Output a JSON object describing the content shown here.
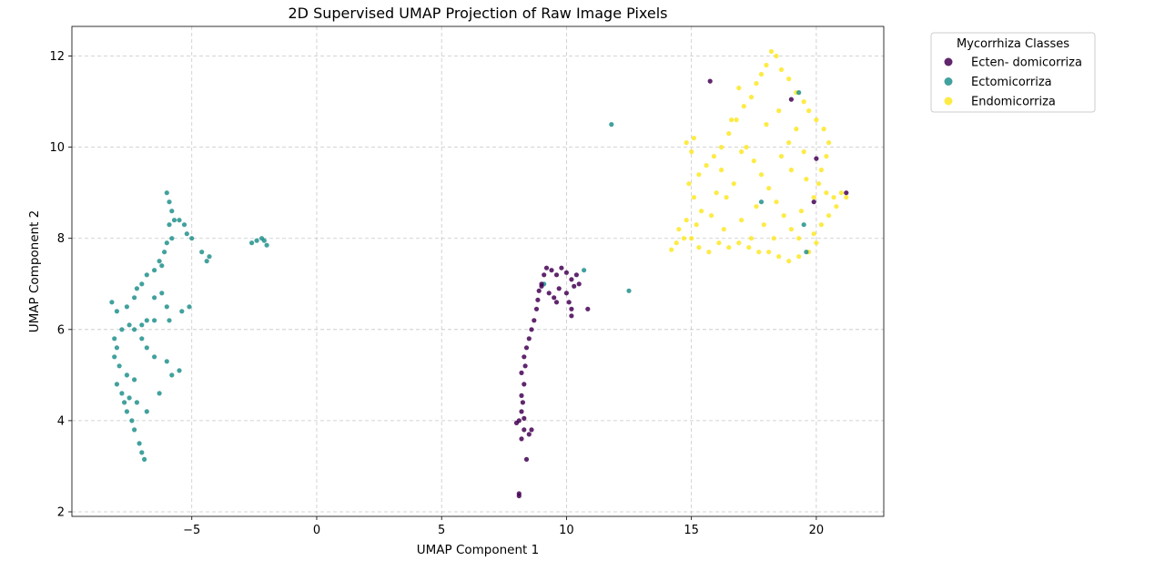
{
  "chart_data": {
    "type": "scatter",
    "title": "2D Supervised UMAP Projection of Raw Image Pixels",
    "xlabel": "UMAP Component 1",
    "ylabel": "UMAP Component 2",
    "xlim": [
      -9.8,
      22.7
    ],
    "ylim": [
      1.9,
      12.65
    ],
    "xticks": [
      -5,
      0,
      5,
      10,
      15,
      20
    ],
    "xtick_labels": [
      "−5",
      "0",
      "5",
      "10",
      "15",
      "20"
    ],
    "yticks": [
      2,
      4,
      6,
      8,
      10,
      12
    ],
    "ytick_labels": [
      "2",
      "4",
      "6",
      "8",
      "10",
      "12"
    ],
    "grid": true,
    "legend": {
      "title": "Mycorrhiza Classes",
      "placement": "outside-top-right",
      "entries": [
        "Ecten- domicorriza",
        "Ectomicorriza",
        "Endomicorriza"
      ]
    },
    "series": [
      {
        "name": "Ecten- domicorriza",
        "color": "#440154",
        "points": [
          [
            8.1,
            2.4
          ],
          [
            8.1,
            2.35
          ],
          [
            8.4,
            3.15
          ],
          [
            8.2,
            3.6
          ],
          [
            8.3,
            3.8
          ],
          [
            8.0,
            3.95
          ],
          [
            8.1,
            4.0
          ],
          [
            8.3,
            4.05
          ],
          [
            8.6,
            3.8
          ],
          [
            8.5,
            3.7
          ],
          [
            8.2,
            4.2
          ],
          [
            8.25,
            4.4
          ],
          [
            8.2,
            4.55
          ],
          [
            8.3,
            4.8
          ],
          [
            8.2,
            5.05
          ],
          [
            8.35,
            5.2
          ],
          [
            8.3,
            5.4
          ],
          [
            8.4,
            5.6
          ],
          [
            8.5,
            5.8
          ],
          [
            8.6,
            6.0
          ],
          [
            8.7,
            6.2
          ],
          [
            8.8,
            6.45
          ],
          [
            8.85,
            6.65
          ],
          [
            8.9,
            6.85
          ],
          [
            9.0,
            7.0
          ],
          [
            9.1,
            7.2
          ],
          [
            9.2,
            7.35
          ],
          [
            9.4,
            7.3
          ],
          [
            9.6,
            7.2
          ],
          [
            9.8,
            7.35
          ],
          [
            10.0,
            7.25
          ],
          [
            10.2,
            7.1
          ],
          [
            10.4,
            7.2
          ],
          [
            10.3,
            6.95
          ],
          [
            10.0,
            6.8
          ],
          [
            9.7,
            6.9
          ],
          [
            9.5,
            6.7
          ],
          [
            9.3,
            6.8
          ],
          [
            9.6,
            6.6
          ],
          [
            10.1,
            6.6
          ],
          [
            10.2,
            6.45
          ],
          [
            10.2,
            6.3
          ],
          [
            10.85,
            6.45
          ],
          [
            10.5,
            7.0
          ],
          [
            9.0,
            6.95
          ],
          [
            15.75,
            11.45
          ],
          [
            19.9,
            8.8
          ],
          [
            21.2,
            9.0
          ],
          [
            20.0,
            9.75
          ],
          [
            19.0,
            11.05
          ]
        ]
      },
      {
        "name": "Ectomicorriza",
        "color": "#21918c",
        "points": [
          [
            -6.9,
            3.15
          ],
          [
            -7.0,
            3.3
          ],
          [
            -7.1,
            3.5
          ],
          [
            -7.3,
            3.8
          ],
          [
            -7.4,
            4.0
          ],
          [
            -7.6,
            4.2
          ],
          [
            -7.7,
            4.4
          ],
          [
            -7.8,
            4.6
          ],
          [
            -7.5,
            4.5
          ],
          [
            -7.2,
            4.4
          ],
          [
            -8.0,
            4.8
          ],
          [
            -7.6,
            5.0
          ],
          [
            -7.9,
            5.2
          ],
          [
            -8.1,
            5.4
          ],
          [
            -8.0,
            5.6
          ],
          [
            -8.1,
            5.8
          ],
          [
            -7.8,
            6.0
          ],
          [
            -7.5,
            6.1
          ],
          [
            -7.3,
            6.0
          ],
          [
            -7.0,
            6.1
          ],
          [
            -6.8,
            6.2
          ],
          [
            -6.5,
            6.2
          ],
          [
            -8.2,
            6.6
          ],
          [
            -8.0,
            6.4
          ],
          [
            -7.6,
            6.5
          ],
          [
            -7.3,
            6.7
          ],
          [
            -7.2,
            6.9
          ],
          [
            -7.0,
            7.0
          ],
          [
            -6.8,
            7.2
          ],
          [
            -6.5,
            7.3
          ],
          [
            -6.3,
            7.5
          ],
          [
            -6.1,
            7.7
          ],
          [
            -6.0,
            7.9
          ],
          [
            -5.8,
            8.0
          ],
          [
            -5.9,
            8.3
          ],
          [
            -5.7,
            8.4
          ],
          [
            -5.5,
            8.4
          ],
          [
            -5.3,
            8.3
          ],
          [
            -5.2,
            8.1
          ],
          [
            -5.8,
            8.6
          ],
          [
            -5.9,
            8.8
          ],
          [
            -6.0,
            9.0
          ],
          [
            -6.2,
            7.4
          ],
          [
            -6.5,
            6.7
          ],
          [
            -6.2,
            6.8
          ],
          [
            -6.0,
            6.5
          ],
          [
            -5.9,
            6.2
          ],
          [
            -5.4,
            6.4
          ],
          [
            -5.1,
            6.5
          ],
          [
            -5.0,
            8.0
          ],
          [
            -4.6,
            7.7
          ],
          [
            -4.4,
            7.5
          ],
          [
            -4.3,
            7.6
          ],
          [
            -6.0,
            5.3
          ],
          [
            -5.8,
            5.0
          ],
          [
            -5.5,
            5.1
          ],
          [
            -6.8,
            5.6
          ],
          [
            -6.5,
            5.4
          ],
          [
            -7.0,
            5.8
          ],
          [
            -6.3,
            4.6
          ],
          [
            -6.8,
            4.2
          ],
          [
            -7.3,
            4.9
          ],
          [
            -2.6,
            7.9
          ],
          [
            -2.4,
            7.95
          ],
          [
            -2.2,
            8.0
          ],
          [
            -2.0,
            7.85
          ],
          [
            -2.1,
            7.95
          ],
          [
            11.8,
            10.5
          ],
          [
            12.5,
            6.85
          ],
          [
            10.7,
            7.3
          ],
          [
            9.1,
            7.0
          ],
          [
            19.5,
            8.3
          ],
          [
            17.8,
            8.8
          ],
          [
            19.6,
            7.7
          ],
          [
            19.3,
            11.2
          ]
        ]
      },
      {
        "name": "Endomicorriza",
        "color": "#fde725",
        "points": [
          [
            18.2,
            12.1
          ],
          [
            18.4,
            12.0
          ],
          [
            18.0,
            11.8
          ],
          [
            17.8,
            11.6
          ],
          [
            17.6,
            11.4
          ],
          [
            18.6,
            11.7
          ],
          [
            18.9,
            11.5
          ],
          [
            19.2,
            11.2
          ],
          [
            19.5,
            11.0
          ],
          [
            19.7,
            10.8
          ],
          [
            20.0,
            10.6
          ],
          [
            20.3,
            10.4
          ],
          [
            20.5,
            10.1
          ],
          [
            20.4,
            9.8
          ],
          [
            20.2,
            9.5
          ],
          [
            20.1,
            9.2
          ],
          [
            20.4,
            9.0
          ],
          [
            20.7,
            8.9
          ],
          [
            21.0,
            9.0
          ],
          [
            21.2,
            8.9
          ],
          [
            20.8,
            8.7
          ],
          [
            20.5,
            8.5
          ],
          [
            20.2,
            8.3
          ],
          [
            19.9,
            8.1
          ],
          [
            20.0,
            7.9
          ],
          [
            19.7,
            7.7
          ],
          [
            19.3,
            7.6
          ],
          [
            18.9,
            7.5
          ],
          [
            18.5,
            7.6
          ],
          [
            18.1,
            7.7
          ],
          [
            17.7,
            7.7
          ],
          [
            17.3,
            7.8
          ],
          [
            16.9,
            7.9
          ],
          [
            16.5,
            7.8
          ],
          [
            16.1,
            7.9
          ],
          [
            15.7,
            7.7
          ],
          [
            15.3,
            7.8
          ],
          [
            15.0,
            8.0
          ],
          [
            14.7,
            8.0
          ],
          [
            14.4,
            7.9
          ],
          [
            14.2,
            7.75
          ],
          [
            14.5,
            8.2
          ],
          [
            14.8,
            8.4
          ],
          [
            15.2,
            8.3
          ],
          [
            15.4,
            8.6
          ],
          [
            15.1,
            8.9
          ],
          [
            14.9,
            9.2
          ],
          [
            15.3,
            9.4
          ],
          [
            15.6,
            9.6
          ],
          [
            15.9,
            9.8
          ],
          [
            16.2,
            10.0
          ],
          [
            15.0,
            9.9
          ],
          [
            14.8,
            10.1
          ],
          [
            15.1,
            10.2
          ],
          [
            16.5,
            10.3
          ],
          [
            16.8,
            10.6
          ],
          [
            17.1,
            10.9
          ],
          [
            17.4,
            11.1
          ],
          [
            16.9,
            11.3
          ],
          [
            17.2,
            10.0
          ],
          [
            17.5,
            9.7
          ],
          [
            17.8,
            9.4
          ],
          [
            18.1,
            9.1
          ],
          [
            18.4,
            8.8
          ],
          [
            18.7,
            8.5
          ],
          [
            19.0,
            8.2
          ],
          [
            19.3,
            8.0
          ],
          [
            18.6,
            9.8
          ],
          [
            18.9,
            10.1
          ],
          [
            19.2,
            10.4
          ],
          [
            19.5,
            9.9
          ],
          [
            19.0,
            9.5
          ],
          [
            16.4,
            8.9
          ],
          [
            16.7,
            9.2
          ],
          [
            16.0,
            9.0
          ],
          [
            15.8,
            8.5
          ],
          [
            16.3,
            8.2
          ],
          [
            17.0,
            8.4
          ],
          [
            17.4,
            8.0
          ],
          [
            17.9,
            8.3
          ],
          [
            18.3,
            8.0
          ],
          [
            19.6,
            9.3
          ],
          [
            19.9,
            8.9
          ],
          [
            16.6,
            10.6
          ],
          [
            18.0,
            10.5
          ],
          [
            18.5,
            10.8
          ],
          [
            17.6,
            8.7
          ],
          [
            19.4,
            8.6
          ],
          [
            16.2,
            9.5
          ],
          [
            17.0,
            9.9
          ]
        ]
      }
    ]
  }
}
